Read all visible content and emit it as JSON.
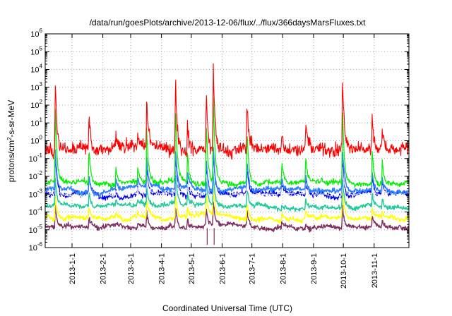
{
  "chart_data": {
    "type": "line",
    "title": "/data/run/goesPlots/archive/2013-12-06/flux/../flux/366daysMarsFluxes.txt",
    "xlabel": "Coordinated Universal Time (UTC)",
    "ylabel": "protons/cm²-s-sr-MeV",
    "yscale": "log",
    "ylim": [
      1e-06,
      1000000.0
    ],
    "xlim": [
      "2012-12-05",
      "2013-12-06"
    ],
    "x_ticks": [
      "2013-1-1",
      "2013-2-1",
      "2013-3-1",
      "2013-4-1",
      "2013-5-1",
      "2013-6-1",
      "2013-7-1",
      "2013-8-1",
      "2013-9-1",
      "2013-10-1",
      "2013-11-1"
    ],
    "y_ticks": [
      {
        "base": "10",
        "exp": "-6"
      },
      {
        "base": "10",
        "exp": "-5"
      },
      {
        "base": "10",
        "exp": "-4"
      },
      {
        "base": "10",
        "exp": "-3"
      },
      {
        "base": "10",
        "exp": "-2"
      },
      {
        "base": "10",
        "exp": "-1"
      },
      {
        "base": "10",
        "exp": "0"
      },
      {
        "base": "10",
        "exp": "1"
      },
      {
        "base": "10",
        "exp": "2"
      },
      {
        "base": "10",
        "exp": "3"
      },
      {
        "base": "10",
        "exp": "4"
      },
      {
        "base": "10",
        "exp": "5"
      },
      {
        "base": "10",
        "exp": "6"
      }
    ],
    "grid": true,
    "event_days": [
      {
        "day": 10,
        "scale": 1.9
      },
      {
        "day": 44,
        "scale": 0.9
      },
      {
        "day": 71,
        "scale": 0.4
      },
      {
        "day": 93,
        "scale": 0.35
      },
      {
        "day": 102,
        "scale": 1.3
      },
      {
        "day": 131,
        "scale": 1.9
      },
      {
        "day": 143,
        "scale": 0.7
      },
      {
        "day": 162,
        "scale": 1.5
      },
      {
        "day": 169,
        "scale": 2.2
      },
      {
        "day": 203,
        "scale": 1.3
      },
      {
        "day": 238,
        "scale": 0.5
      },
      {
        "day": 262,
        "scale": 0.7
      },
      {
        "day": 299,
        "scale": 2.0
      },
      {
        "day": 329,
        "scale": 0.8
      },
      {
        "day": 339,
        "scale": 0.6
      }
    ],
    "series": [
      {
        "color": "#7e2f5e",
        "base_log": -4.85,
        "noise": 0.1,
        "amp": 0.7,
        "width": 1.4
      },
      {
        "color": "#ffff00",
        "base_log": -4.3,
        "noise": 0.1,
        "amp": 0.8,
        "width": 1.4
      },
      {
        "color": "#1fc99a",
        "base_log": -3.65,
        "noise": 0.1,
        "amp": 0.9,
        "width": 1.4
      },
      {
        "color": "#0000f5",
        "base_log": -3.0,
        "noise": 0.14,
        "amp": 1.2,
        "width": 1.2
      },
      {
        "color": "#ffffff",
        "base_log": -3.0,
        "noise": 0.06,
        "amp": 0.9,
        "width": 0.8
      },
      {
        "color": "#2a7fff",
        "base_log": -2.7,
        "noise": 0.11,
        "amp": 1.3,
        "width": 1.4
      },
      {
        "color": "#00ee00",
        "base_log": -2.35,
        "noise": 0.12,
        "amp": 2.4,
        "width": 1.2
      },
      {
        "color": "#ff0000",
        "base_log": -0.45,
        "noise": 0.32,
        "amp": 2.3,
        "width": 1.1
      }
    ]
  }
}
